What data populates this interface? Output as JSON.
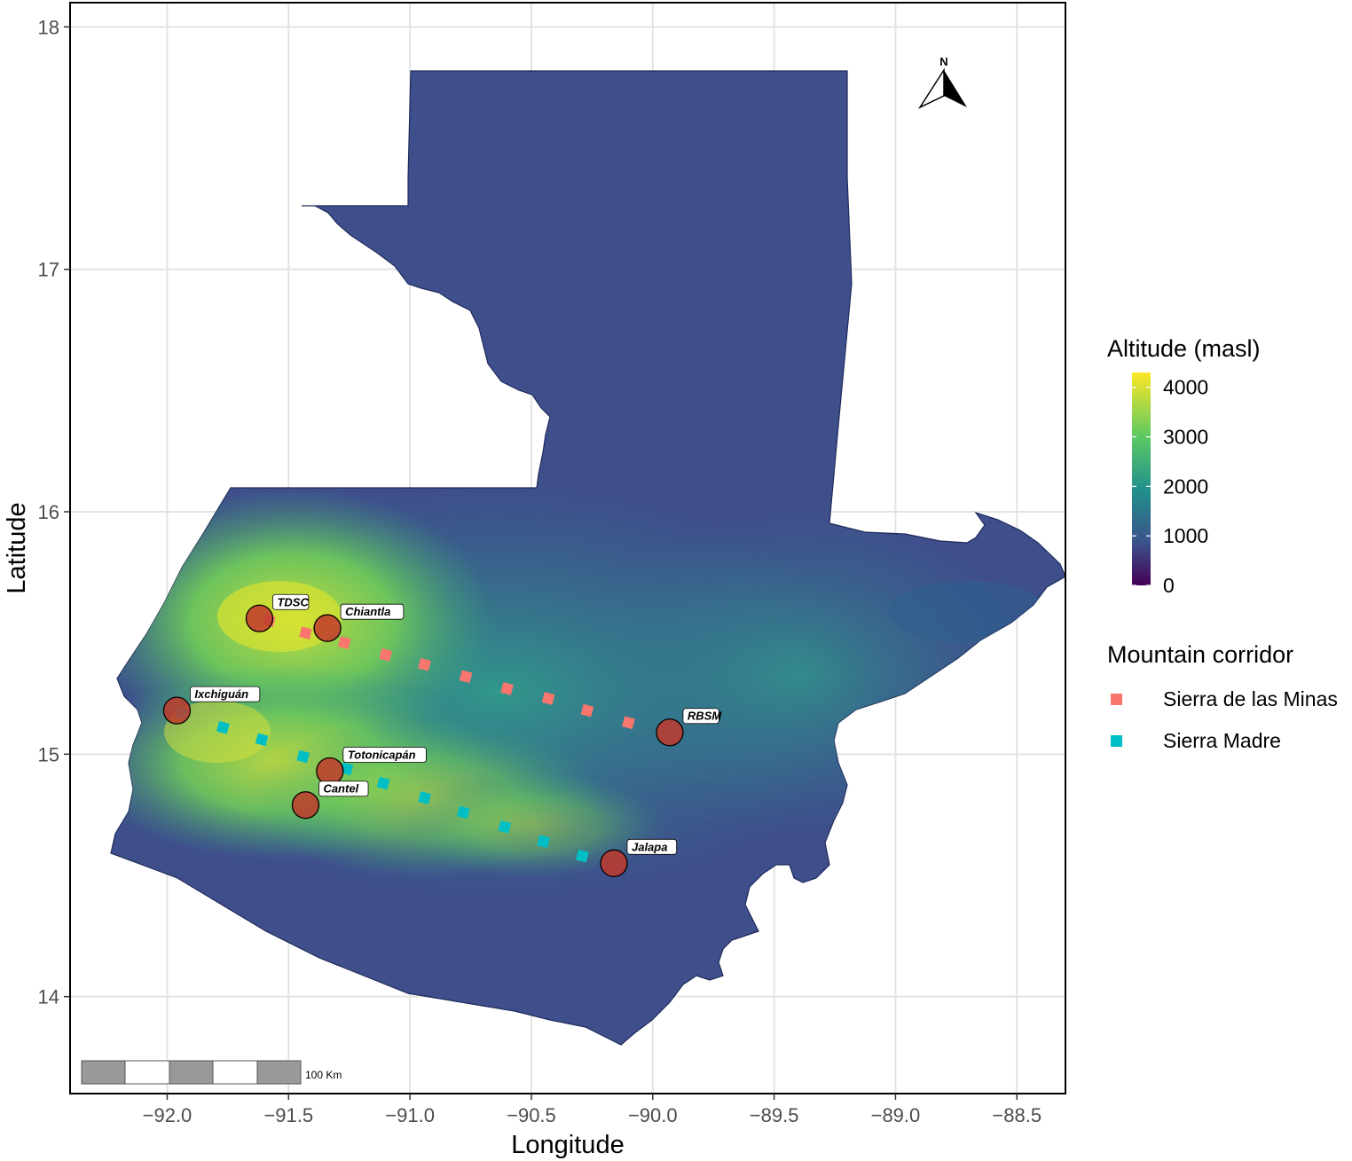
{
  "axes": {
    "x_title": "Longitude",
    "y_title": "Latitude",
    "x_ticks": [
      "-92.0",
      "-91.5",
      "-91.0",
      "-90.5",
      "-90.0",
      "-89.5",
      "-89.0",
      "-88.5"
    ],
    "y_ticks": [
      "14",
      "15",
      "16",
      "17",
      "18"
    ]
  },
  "north_arrow": {
    "label": "N"
  },
  "scale_bar": {
    "label": "100 Km"
  },
  "legend": {
    "altitude_title": "Altitude (masl)",
    "altitude_breaks": [
      "4000",
      "3000",
      "2000",
      "1000",
      "0"
    ],
    "corridor_title": "Mountain corridor",
    "corridors": [
      {
        "label": "Sierra de las Minas",
        "color": "#f8766d"
      },
      {
        "label": "Sierra Madre",
        "color": "#00bfc4"
      }
    ]
  },
  "colors": {
    "site_fill": "#c0392b",
    "lowland": "#3b4f8a",
    "highland": "#8fd14f",
    "peak": "#fde725"
  },
  "chart_data": {
    "type": "scatter",
    "xlim": [
      -92.4,
      -88.3
    ],
    "ylim": [
      13.6,
      18.1
    ],
    "xlabel": "Longitude",
    "ylabel": "Latitude",
    "grid": true,
    "sites": [
      {
        "name": "TDSC",
        "lon": -91.62,
        "lat": 15.56
      },
      {
        "name": "Chiantla",
        "lon": -91.34,
        "lat": 15.52
      },
      {
        "name": "Ixchiguán",
        "lon": -91.96,
        "lat": 15.18
      },
      {
        "name": "RBSM",
        "lon": -89.93,
        "lat": 15.09
      },
      {
        "name": "Totonicapán",
        "lon": -91.33,
        "lat": 14.93
      },
      {
        "name": "Cantel",
        "lon": -91.43,
        "lat": 14.79
      },
      {
        "name": "Jalapa",
        "lon": -90.16,
        "lat": 14.55
      }
    ],
    "series": [
      {
        "name": "Sierra de las Minas",
        "points": [
          [
            -91.58,
            15.55
          ],
          [
            -91.43,
            15.5
          ],
          [
            -91.27,
            15.46
          ],
          [
            -91.1,
            15.41
          ],
          [
            -90.94,
            15.37
          ],
          [
            -90.77,
            15.32
          ],
          [
            -90.6,
            15.27
          ],
          [
            -90.43,
            15.23
          ],
          [
            -90.27,
            15.18
          ],
          [
            -90.1,
            15.13
          ]
        ]
      },
      {
        "name": "Sierra Madre",
        "points": [
          [
            -91.94,
            15.17
          ],
          [
            -91.77,
            15.11
          ],
          [
            -91.61,
            15.06
          ],
          [
            -91.44,
            14.99
          ],
          [
            -91.26,
            14.94
          ],
          [
            -91.11,
            14.88
          ],
          [
            -90.94,
            14.82
          ],
          [
            -90.78,
            14.76
          ],
          [
            -90.61,
            14.7
          ],
          [
            -90.45,
            14.64
          ],
          [
            -90.29,
            14.58
          ]
        ]
      }
    ]
  }
}
